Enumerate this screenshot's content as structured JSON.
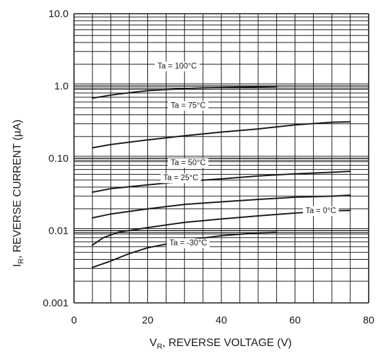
{
  "chart_data": {
    "type": "line",
    "title": "",
    "xlabel": "V",
    "xlabel_sub": "R",
    "xlabel_rest": ", REVERSE VOLTAGE (V)",
    "ylabel": "I",
    "ylabel_sub": "R",
    "ylabel_rest": ", REVERSE CURRENT (µA)",
    "xlim": [
      0,
      80
    ],
    "ylim": [
      0.001,
      10
    ],
    "yscale": "log",
    "grid": true,
    "xticks": [
      {
        "value": 0,
        "label": "0"
      },
      {
        "value": 20,
        "label": "20"
      },
      {
        "value": 40,
        "label": "40"
      },
      {
        "value": 60,
        "label": "60"
      },
      {
        "value": 80,
        "label": "80"
      }
    ],
    "yticks": [
      {
        "value": 10,
        "label": "10.0"
      },
      {
        "value": 1,
        "label": "1.0"
      },
      {
        "value": 0.1,
        "label": "0.10"
      },
      {
        "value": 0.01,
        "label": "0.01"
      },
      {
        "value": 0.001,
        "label": "0.001"
      }
    ],
    "series": [
      {
        "name": "Ta = 100°C",
        "label_at": {
          "x": 28,
          "y": 1.9
        },
        "points": [
          [
            5,
            0.68
          ],
          [
            10,
            0.75
          ],
          [
            15,
            0.81
          ],
          [
            20,
            0.86
          ],
          [
            25,
            0.89
          ],
          [
            30,
            0.92
          ],
          [
            35,
            0.94
          ],
          [
            40,
            0.95
          ],
          [
            45,
            0.96
          ],
          [
            50,
            0.97
          ],
          [
            55,
            0.98
          ]
        ]
      },
      {
        "name": "Ta = 75°C",
        "label_at": {
          "x": 31,
          "y": 0.54
        },
        "points": [
          [
            5,
            0.14
          ],
          [
            10,
            0.155
          ],
          [
            20,
            0.18
          ],
          [
            30,
            0.205
          ],
          [
            40,
            0.23
          ],
          [
            50,
            0.255
          ],
          [
            60,
            0.29
          ],
          [
            70,
            0.315
          ],
          [
            75,
            0.32
          ]
        ]
      },
      {
        "name": "Ta = 50°C",
        "label_at": {
          "x": 31,
          "y": 0.088
        },
        "points": [
          [
            5,
            0.034
          ],
          [
            10,
            0.038
          ],
          [
            20,
            0.043
          ],
          [
            30,
            0.048
          ],
          [
            40,
            0.052
          ],
          [
            50,
            0.057
          ],
          [
            60,
            0.061
          ],
          [
            70,
            0.064
          ],
          [
            75,
            0.066
          ]
        ]
      },
      {
        "name": "Ta = 25°C",
        "label_at": {
          "x": 29,
          "y": 0.054
        },
        "points": [
          [
            5,
            0.015
          ],
          [
            10,
            0.017
          ],
          [
            20,
            0.02
          ],
          [
            30,
            0.023
          ],
          [
            40,
            0.025
          ],
          [
            50,
            0.027
          ],
          [
            60,
            0.029
          ],
          [
            70,
            0.03
          ],
          [
            75,
            0.031
          ]
        ]
      },
      {
        "name": "Ta = 0°C",
        "label_at": {
          "x": 67,
          "y": 0.019
        },
        "points": [
          [
            5,
            0.0063
          ],
          [
            8,
            0.008
          ],
          [
            12,
            0.0095
          ],
          [
            20,
            0.011
          ],
          [
            30,
            0.013
          ],
          [
            40,
            0.0145
          ],
          [
            50,
            0.016
          ],
          [
            60,
            0.0175
          ],
          [
            70,
            0.0188
          ],
          [
            75,
            0.019
          ]
        ]
      },
      {
        "name": "Ta = -30°C",
        "label_at": {
          "x": 31,
          "y": 0.0068
        },
        "points": [
          [
            5,
            0.0031
          ],
          [
            10,
            0.0038
          ],
          [
            15,
            0.0048
          ],
          [
            20,
            0.0058
          ],
          [
            30,
            0.0073
          ],
          [
            40,
            0.0085
          ],
          [
            50,
            0.0093
          ],
          [
            55,
            0.0095
          ]
        ]
      }
    ]
  }
}
